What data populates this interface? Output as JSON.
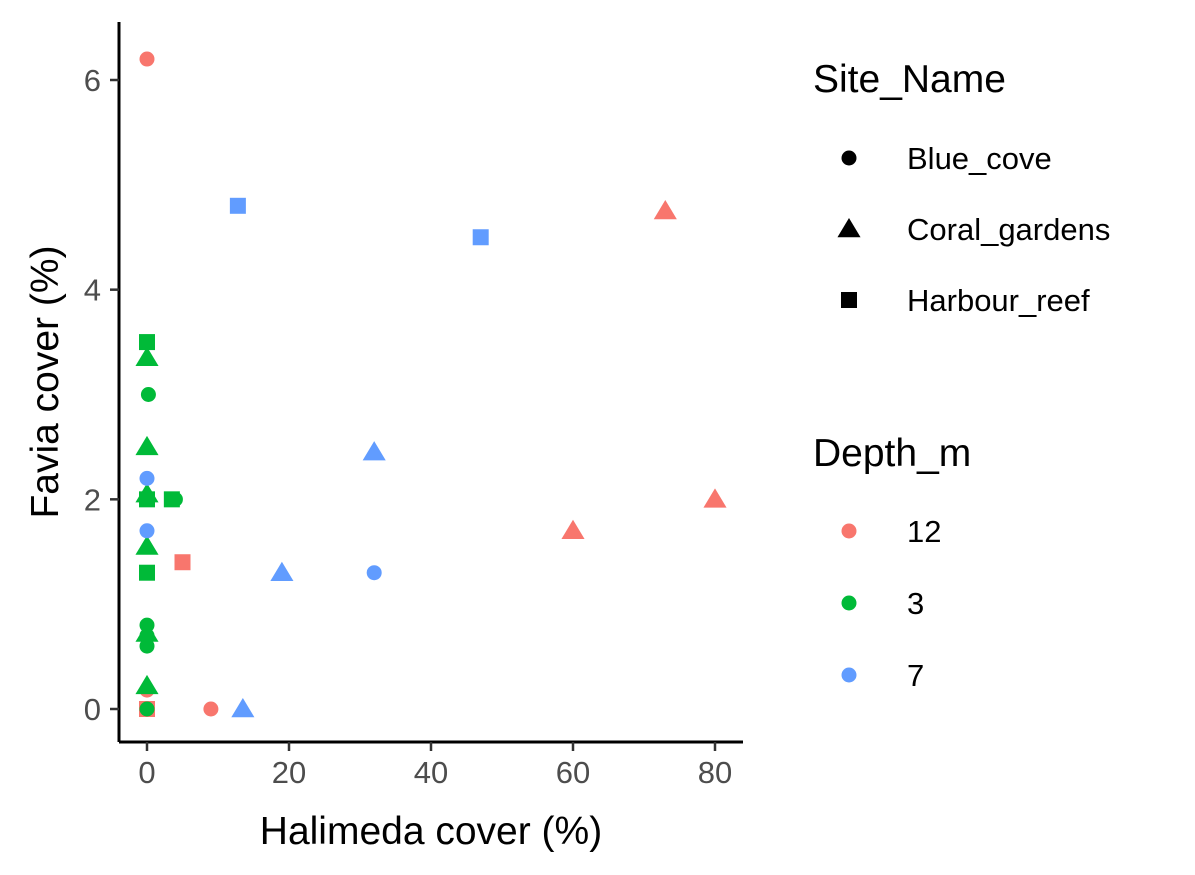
{
  "chart_data": {
    "type": "scatter",
    "title": "",
    "xlabel": "Halimeda cover (%)",
    "ylabel": "Favia cover (%)",
    "xlim": [
      -4,
      84
    ],
    "ylim": [
      -0.3,
      6.5
    ],
    "x_ticks": [
      0,
      20,
      40,
      60,
      80
    ],
    "y_ticks": [
      0,
      2,
      4,
      6
    ],
    "grid": false,
    "legend_position": "right",
    "shape_legend": {
      "title": "Site_Name",
      "entries": [
        {
          "label": "Blue_cove",
          "shape": "circle"
        },
        {
          "label": "Coral_gardens",
          "shape": "triangle"
        },
        {
          "label": "Harbour_reef",
          "shape": "square"
        }
      ]
    },
    "color_legend": {
      "title": "Depth_m",
      "entries": [
        {
          "label": "12",
          "color": "#F8766D"
        },
        {
          "label": "3",
          "color": "#00BA38"
        },
        {
          "label": "7",
          "color": "#619CFF"
        }
      ]
    },
    "points": [
      {
        "x": 0,
        "y": 6.2,
        "site": "Blue_cove",
        "depth": "12"
      },
      {
        "x": 0,
        "y": 0.18,
        "site": "Blue_cove",
        "depth": "12"
      },
      {
        "x": 9,
        "y": 0,
        "site": "Blue_cove",
        "depth": "12"
      },
      {
        "x": 60,
        "y": 1.7,
        "site": "Coral_gardens",
        "depth": "12"
      },
      {
        "x": 73,
        "y": 4.75,
        "site": "Coral_gardens",
        "depth": "12"
      },
      {
        "x": 80,
        "y": 2.0,
        "site": "Coral_gardens",
        "depth": "12"
      },
      {
        "x": 0,
        "y": 0,
        "site": "Harbour_reef",
        "depth": "12"
      },
      {
        "x": 5,
        "y": 1.4,
        "site": "Harbour_reef",
        "depth": "12"
      },
      {
        "x": 0.2,
        "y": 3.0,
        "site": "Blue_cove",
        "depth": "3"
      },
      {
        "x": 0,
        "y": 0.8,
        "site": "Blue_cove",
        "depth": "3"
      },
      {
        "x": 0,
        "y": 0.7,
        "site": "Blue_cove",
        "depth": "3"
      },
      {
        "x": 0,
        "y": 0.6,
        "site": "Blue_cove",
        "depth": "3"
      },
      {
        "x": 0,
        "y": 0,
        "site": "Blue_cove",
        "depth": "3"
      },
      {
        "x": 4,
        "y": 2.0,
        "site": "Blue_cove",
        "depth": "3"
      },
      {
        "x": 0,
        "y": 3.35,
        "site": "Coral_gardens",
        "depth": "3"
      },
      {
        "x": 0,
        "y": 2.5,
        "site": "Coral_gardens",
        "depth": "3"
      },
      {
        "x": 0,
        "y": 2.05,
        "site": "Coral_gardens",
        "depth": "3"
      },
      {
        "x": 0,
        "y": 1.55,
        "site": "Coral_gardens",
        "depth": "3"
      },
      {
        "x": 0,
        "y": 0.72,
        "site": "Coral_gardens",
        "depth": "3"
      },
      {
        "x": 0,
        "y": 0.22,
        "site": "Coral_gardens",
        "depth": "3"
      },
      {
        "x": 0,
        "y": 3.5,
        "site": "Harbour_reef",
        "depth": "3"
      },
      {
        "x": 0,
        "y": 2.0,
        "site": "Harbour_reef",
        "depth": "3"
      },
      {
        "x": 3.5,
        "y": 2.0,
        "site": "Harbour_reef",
        "depth": "3"
      },
      {
        "x": 0,
        "y": 1.3,
        "site": "Harbour_reef",
        "depth": "3"
      },
      {
        "x": 0,
        "y": 2.2,
        "site": "Blue_cove",
        "depth": "7"
      },
      {
        "x": 0,
        "y": 1.7,
        "site": "Blue_cove",
        "depth": "7"
      },
      {
        "x": 32,
        "y": 1.3,
        "site": "Blue_cove",
        "depth": "7"
      },
      {
        "x": 32,
        "y": 2.45,
        "site": "Coral_gardens",
        "depth": "7"
      },
      {
        "x": 19,
        "y": 1.3,
        "site": "Coral_gardens",
        "depth": "7"
      },
      {
        "x": 13.5,
        "y": 0,
        "site": "Coral_gardens",
        "depth": "7"
      },
      {
        "x": 12.8,
        "y": 4.8,
        "site": "Harbour_reef",
        "depth": "7"
      },
      {
        "x": 47,
        "y": 4.5,
        "site": "Harbour_reef",
        "depth": "7"
      }
    ]
  }
}
